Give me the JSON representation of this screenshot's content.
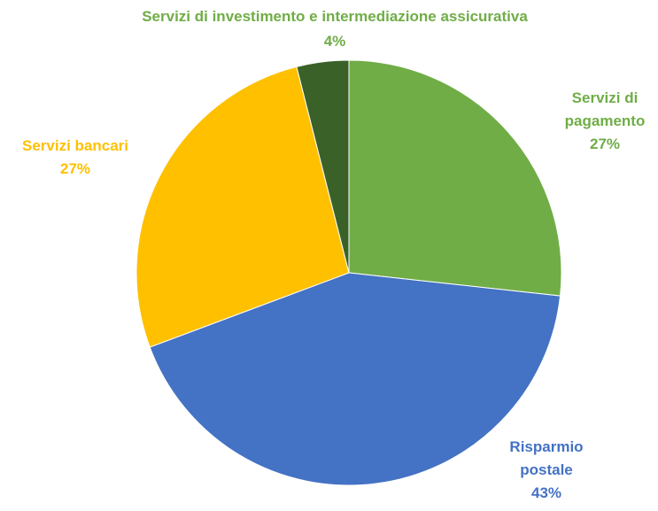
{
  "chart_data": {
    "type": "pie",
    "title": "",
    "start_angle_deg": 0,
    "direction": "clockwise",
    "series": [
      {
        "values": [
          27,
          43,
          27,
          4
        ],
        "categories": [
          "Servizi di pagamento",
          "Risparmio postale",
          "Servizi bancari",
          "Servizi di investimento e intermediazione assicurativa"
        ]
      }
    ],
    "slices": [
      {
        "id": "pagamento",
        "label_lines": [
          "Servizi di",
          "pagamento"
        ],
        "value": 27,
        "value_label": "27%",
        "color": "#70AD47"
      },
      {
        "id": "risparmio",
        "label_lines": [
          "Risparmio",
          "postale"
        ],
        "value": 43,
        "value_label": "43%",
        "color": "#4472C4"
      },
      {
        "id": "bancari",
        "label_lines": [
          "Servizi bancari"
        ],
        "value": 27,
        "value_label": "27%",
        "color": "#FFC000"
      },
      {
        "id": "investimento",
        "label_lines": [
          "Servizi di investimento e intermediazione assicurativa"
        ],
        "value": 4,
        "value_label": "4%",
        "color": "#3A6228",
        "label_color": "#70AD47"
      }
    ]
  }
}
